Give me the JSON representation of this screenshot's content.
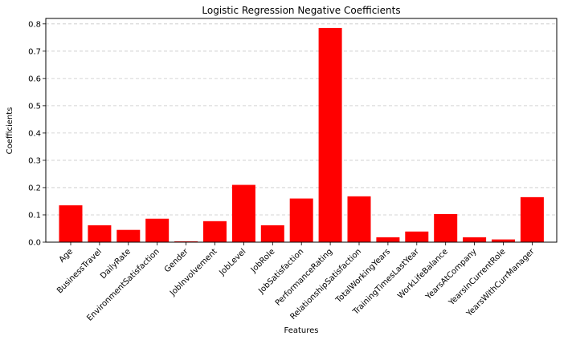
{
  "chart_data": {
    "type": "bar",
    "title": "Logistic Regression Negative Coefficients",
    "xlabel": "Features",
    "ylabel": "Coefficients",
    "ylim": [
      0,
      0.82
    ],
    "yticks": [
      "0.0",
      "0.1",
      "0.2",
      "0.3",
      "0.4",
      "0.5",
      "0.6",
      "0.7",
      "0.8"
    ],
    "grid": "horizontal-dashed",
    "bar_color": "#ff0000",
    "categories": [
      "Age",
      "BusinessTravel",
      "DailyRate",
      "EnvironmentSatisfaction",
      "Gender",
      "JobInvolvement",
      "JobLevel",
      "JobRole",
      "JobSatisfaction",
      "PerformanceRating",
      "RelationshipSatisfaction",
      "TotalWorkingYears",
      "TrainingTimesLastYear",
      "WorkLifeBalance",
      "YearsAtCompany",
      "YearsInCurrentRole",
      "YearsWithCurrManager"
    ],
    "values": [
      0.135,
      0.062,
      0.045,
      0.086,
      0.003,
      0.077,
      0.21,
      0.062,
      0.16,
      0.785,
      0.168,
      0.018,
      0.039,
      0.103,
      0.018,
      0.01,
      0.165
    ]
  }
}
